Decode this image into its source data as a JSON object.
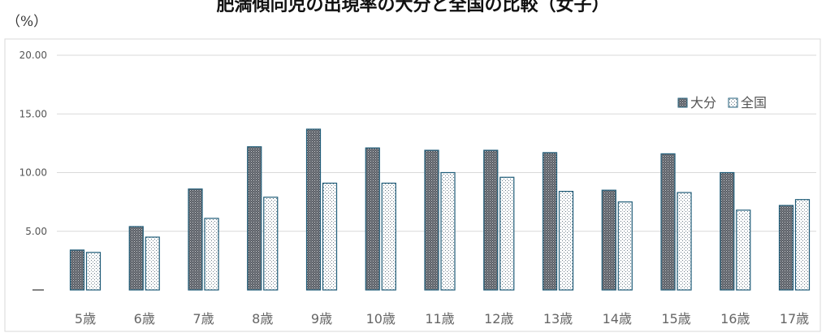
{
  "chart_data": {
    "type": "bar",
    "title": "肥満傾向児の出現率の大分と全国の比較（女子）",
    "unit_label": "（%）",
    "categories": [
      "5歳",
      "6歳",
      "7歳",
      "8歳",
      "9歳",
      "10歳",
      "11歳",
      "12歳",
      "13歳",
      "14歳",
      "15歳",
      "16歳",
      "17歳"
    ],
    "series": [
      {
        "name": "大分",
        "values": [
          3.4,
          5.4,
          8.6,
          12.2,
          13.7,
          12.1,
          11.9,
          11.9,
          11.7,
          8.5,
          11.6,
          10.0,
          7.2
        ],
        "color": "#6d7178",
        "pattern": "dark-dots"
      },
      {
        "name": "全国",
        "values": [
          3.2,
          4.5,
          6.1,
          7.9,
          9.1,
          9.1,
          10.0,
          9.6,
          8.4,
          7.5,
          8.3,
          6.8,
          7.7
        ],
        "color": "#ffffff",
        "pattern": "light-dots"
      }
    ],
    "ylim": [
      0,
      20
    ],
    "yticks": [
      "",
      "5.00",
      "10.00",
      "15.00",
      "20.00"
    ],
    "grid": true,
    "legend_position": "top-right",
    "bar_edge_color": "#1f5c78"
  }
}
